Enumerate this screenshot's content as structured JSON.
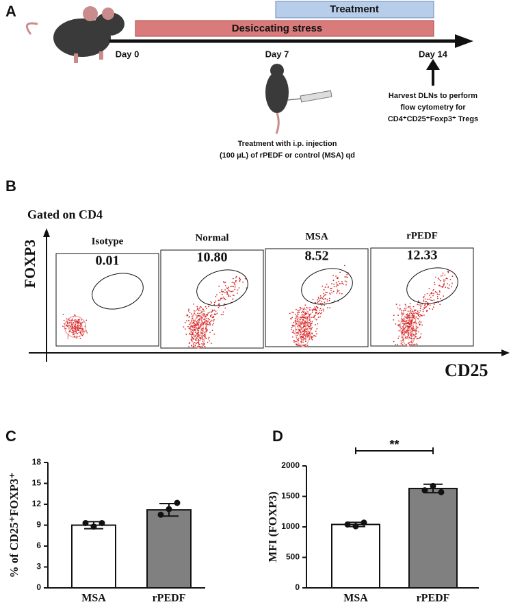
{
  "panels": {
    "a": "A",
    "b": "B",
    "c": "C",
    "d": "D"
  },
  "timeline": {
    "treatment": "Treatment",
    "stress": "Desiccating stress",
    "days": [
      "Day 0",
      "Day 7",
      "Day 14"
    ],
    "harvest": [
      "Harvest DLNs to perform",
      "flow cytometry for",
      "CD4⁺CD25⁺Foxp3⁺ Tregs"
    ],
    "injection": [
      "Treatment with i.p. injection",
      "(100 μL) of rPEDF or control (MSA) qd"
    ]
  },
  "flow": {
    "gate": "Gated on CD4",
    "y_label": "FOXP3",
    "x_label": "CD25",
    "plots": [
      {
        "name": "Isotype",
        "value": "0.01"
      },
      {
        "name": "Normal",
        "value": "10.80"
      },
      {
        "name": "MSA",
        "value": "8.52"
      },
      {
        "name": "rPEDF",
        "value": "12.33"
      }
    ]
  },
  "chart_data": [
    {
      "type": "bar",
      "y_label": "% of CD25⁺FOXP3⁺",
      "categories": [
        "MSA",
        "rPEDF"
      ],
      "values": [
        9.0,
        11.2
      ],
      "errors": [
        0.5,
        0.9
      ],
      "points": [
        [
          9.3,
          8.8,
          9.3
        ],
        [
          10.5,
          11.3,
          12.2
        ]
      ],
      "colors": [
        "#ffffff",
        "#808080"
      ],
      "ylim": [
        0,
        18
      ],
      "yticks": [
        0,
        3,
        6,
        9,
        12,
        15,
        18
      ]
    },
    {
      "type": "bar",
      "y_label": "MFI (FOXP3)",
      "categories": [
        "MSA",
        "rPEDF"
      ],
      "values": [
        1040,
        1630
      ],
      "errors": [
        35,
        70
      ],
      "points": [
        [
          1040,
          1010,
          1070
        ],
        [
          1600,
          1670,
          1570
        ]
      ],
      "colors": [
        "#ffffff",
        "#808080"
      ],
      "ylim": [
        0,
        2000
      ],
      "yticks": [
        0,
        500,
        1000,
        1500,
        2000
      ],
      "annotation": "**"
    }
  ]
}
